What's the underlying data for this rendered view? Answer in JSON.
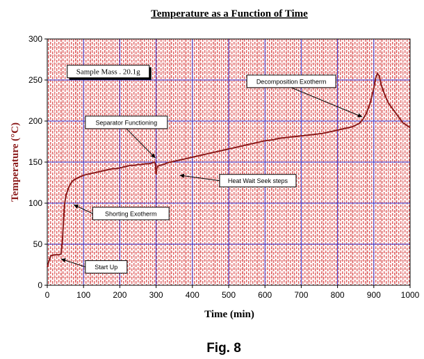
{
  "chart_data": {
    "type": "line",
    "title": "Temperature as a Function of Time",
    "xlabel": "Time (min)",
    "ylabel": "Temperature (°C)",
    "xlim": [
      0,
      1000
    ],
    "ylim": [
      0,
      300
    ],
    "xticks": [
      0,
      100,
      200,
      300,
      400,
      500,
      600,
      700,
      800,
      900,
      1000
    ],
    "yticks": [
      0,
      50,
      100,
      150,
      200,
      250,
      300
    ],
    "grid": true,
    "series": [
      {
        "color": "#8b1a1a",
        "x": [
          0,
          5,
          10,
          20,
          30,
          38,
          42,
          45,
          48,
          52,
          56,
          60,
          65,
          70,
          80,
          90,
          100,
          110,
          120,
          130,
          140,
          150,
          160,
          170,
          180,
          190,
          200,
          210,
          220,
          230,
          240,
          250,
          260,
          270,
          280,
          290,
          295,
          298,
          300,
          302,
          305,
          310,
          320,
          330,
          340,
          350,
          360,
          380,
          400,
          420,
          440,
          460,
          480,
          500,
          520,
          540,
          560,
          580,
          600,
          620,
          640,
          660,
          680,
          700,
          720,
          740,
          760,
          780,
          800,
          820,
          840,
          860,
          870,
          880,
          890,
          900,
          905,
          910,
          915,
          920,
          930,
          940,
          960,
          980,
          1000
        ],
        "y": [
          22,
          30,
          36,
          37,
          37,
          38,
          55,
          80,
          100,
          110,
          115,
          120,
          124,
          127,
          130,
          132,
          134,
          135,
          136,
          137,
          138,
          139,
          140,
          141,
          142,
          142,
          143,
          144,
          145,
          146,
          146,
          147,
          147,
          148,
          148,
          149,
          150,
          148,
          135,
          142,
          145,
          146,
          147,
          149,
          150,
          151,
          152,
          154,
          156,
          158,
          160,
          162,
          164,
          166,
          168,
          170,
          172,
          174,
          176,
          177,
          179,
          180,
          181,
          182,
          183,
          184,
          185,
          187,
          189,
          191,
          193,
          197,
          202,
          210,
          222,
          240,
          252,
          258,
          255,
          245,
          232,
          222,
          210,
          198,
          192
        ]
      }
    ],
    "annotations": [
      {
        "text": "Sample Mass . 20.1g"
      },
      {
        "text": "Decomposition Exotherm"
      },
      {
        "text": "Separator Functioning"
      },
      {
        "text": "Heat Wait Seek steps"
      },
      {
        "text": "Shorting Exotherm"
      },
      {
        "text": "Start Up"
      }
    ]
  },
  "figure_label": "Fig. 8"
}
